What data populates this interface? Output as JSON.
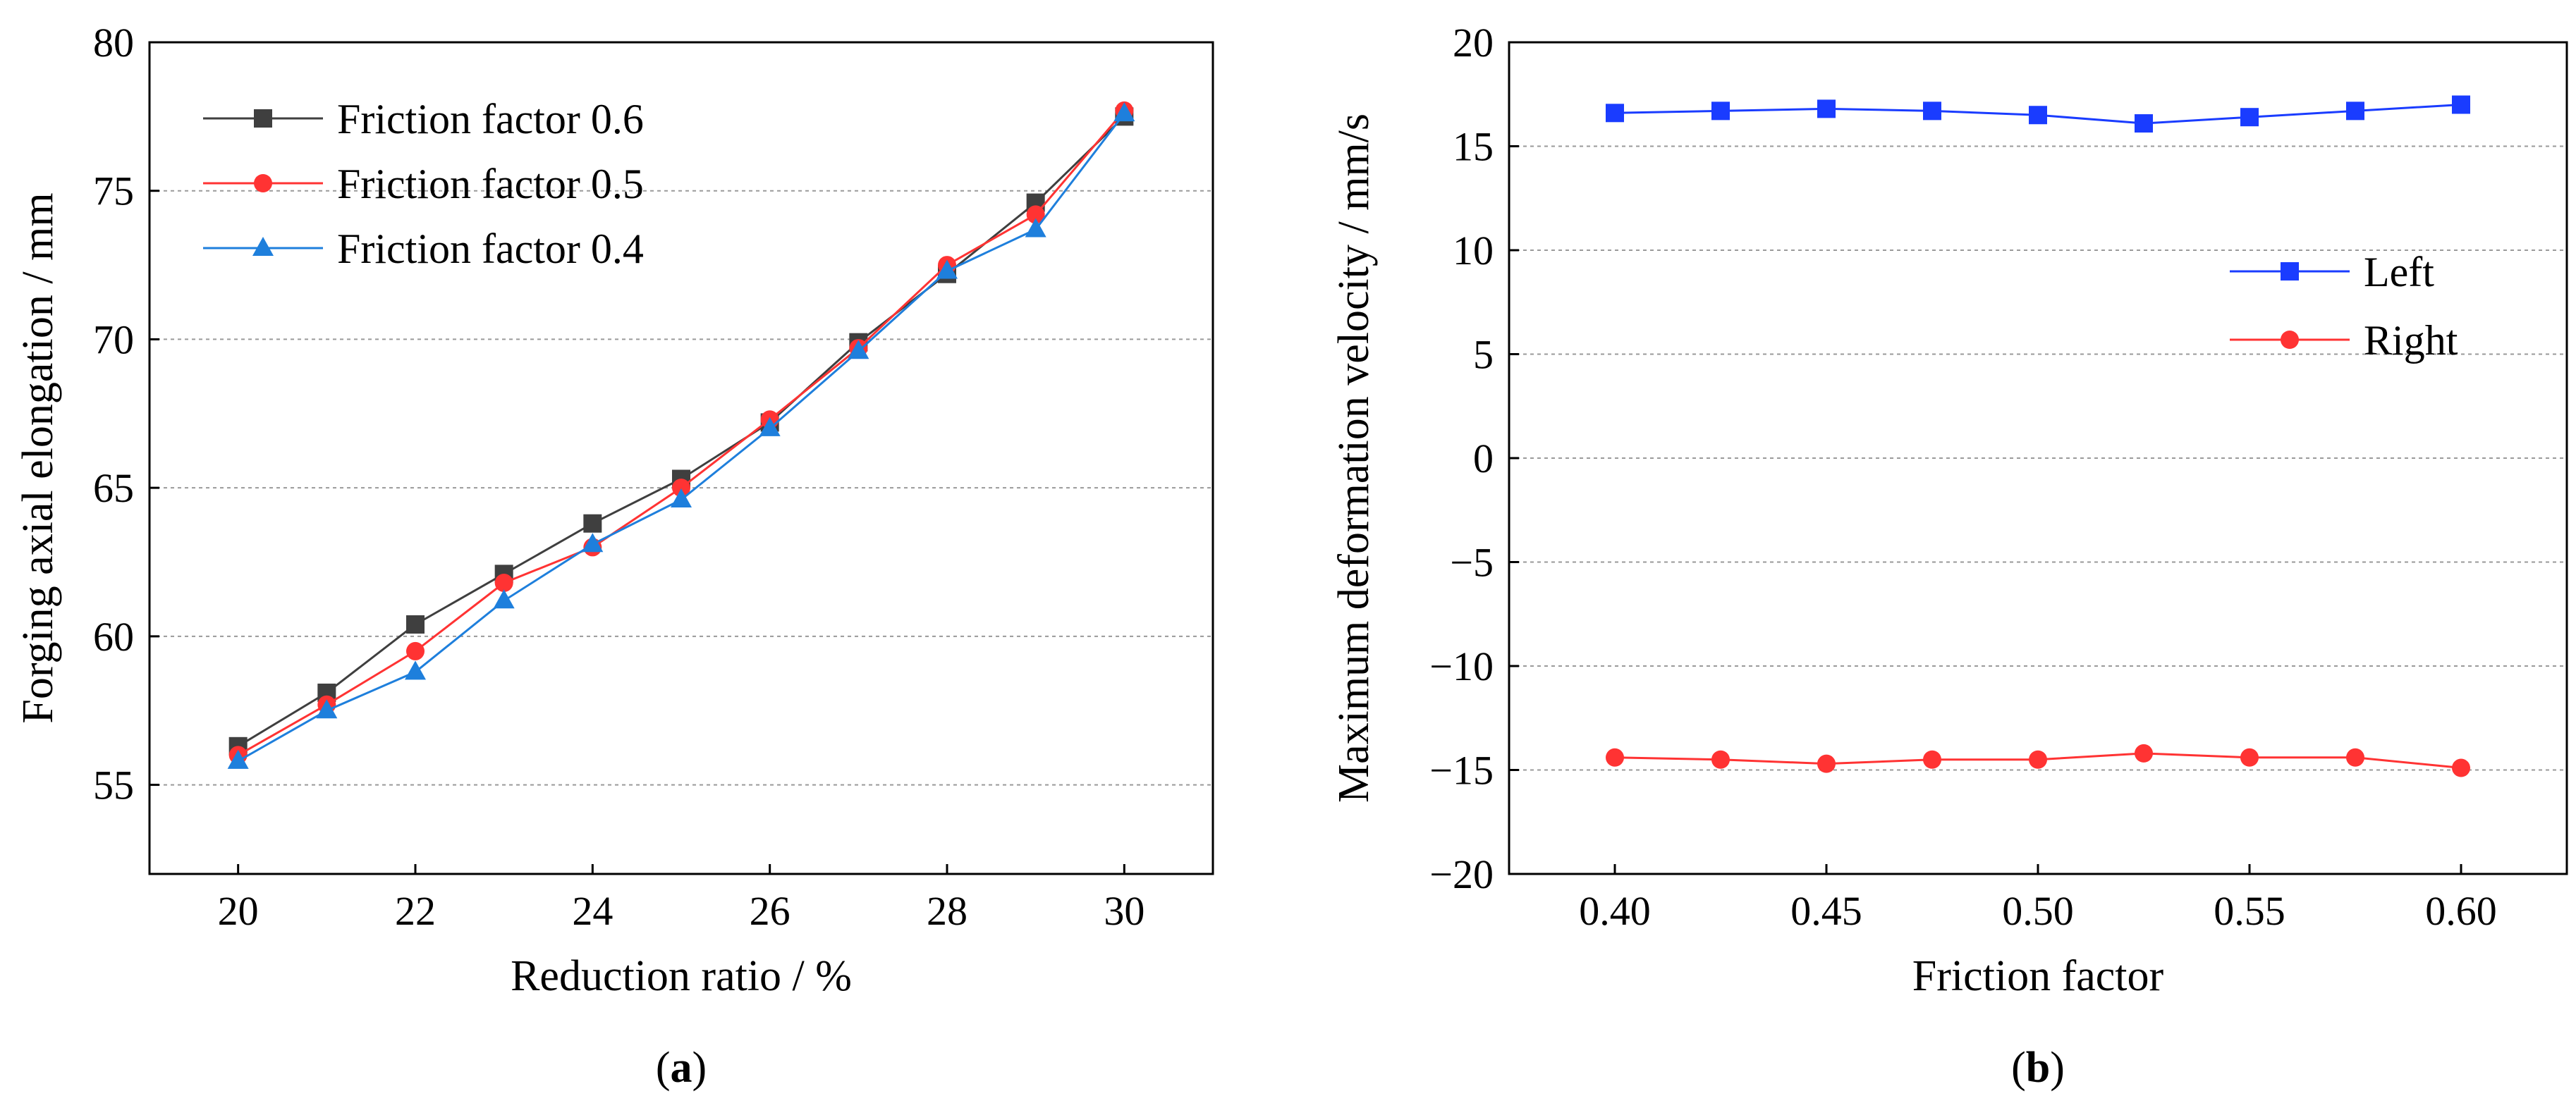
{
  "chart_data": [
    {
      "type": "line",
      "panel_label_open": "(",
      "panel_label_letter": "a",
      "panel_label_close": ")",
      "xlabel": "Reduction ratio / %",
      "ylabel": "Forging axial elongation / mm",
      "xlim": [
        19,
        31
      ],
      "ylim": [
        52,
        80
      ],
      "xticks": [
        20,
        22,
        24,
        26,
        28,
        30
      ],
      "yticks": [
        55,
        60,
        65,
        70,
        75,
        80
      ],
      "grid": "horizontal-dashed",
      "legend_position": "top-left",
      "x": [
        20,
        21,
        22,
        23,
        24,
        25,
        26,
        27,
        28,
        29,
        30
      ],
      "series": [
        {
          "name": "Friction factor 0.6",
          "color": "#3f3f3f",
          "marker": "square",
          "values": [
            56.3,
            58.1,
            60.4,
            62.1,
            63.8,
            65.3,
            67.2,
            69.9,
            72.2,
            74.6,
            77.5
          ]
        },
        {
          "name": "Friction factor 0.5",
          "color": "#ff3333",
          "marker": "circle",
          "values": [
            56.0,
            57.7,
            59.5,
            61.8,
            63.0,
            65.0,
            67.3,
            69.7,
            72.5,
            74.2,
            77.7
          ]
        },
        {
          "name": "Friction factor 0.4",
          "color": "#1e7fdc",
          "marker": "triangle",
          "values": [
            55.8,
            57.5,
            58.8,
            61.2,
            63.1,
            64.6,
            67.0,
            69.6,
            72.3,
            73.7,
            77.6
          ]
        }
      ]
    },
    {
      "type": "line",
      "panel_label_open": "(",
      "panel_label_letter": "b",
      "panel_label_close": ")",
      "xlabel": "Friction factor",
      "ylabel": "Maximum deformation velocity / mm/s",
      "xlim": [
        0.375,
        0.625
      ],
      "ylim": [
        -20,
        20
      ],
      "xticks": [
        "0.40",
        "0.45",
        "0.50",
        "0.55",
        "0.60"
      ],
      "yticks": [
        "−20",
        "−15",
        "−10",
        "−5",
        "0",
        "5",
        "10",
        "15",
        "20"
      ],
      "grid": "horizontal-dashed",
      "legend_position": "center-right",
      "x": [
        0.4,
        0.425,
        0.45,
        0.475,
        0.5,
        0.525,
        0.55,
        0.575,
        0.6
      ],
      "series": [
        {
          "name": "Left",
          "color": "#1a3cff",
          "marker": "square",
          "values": [
            16.6,
            16.7,
            16.8,
            16.7,
            16.5,
            16.1,
            16.4,
            16.7,
            17.0
          ]
        },
        {
          "name": "Right",
          "color": "#ff3333",
          "marker": "circle",
          "values": [
            -14.4,
            -14.5,
            -14.7,
            -14.5,
            -14.5,
            -14.2,
            -14.4,
            -14.4,
            -14.9
          ]
        }
      ]
    }
  ]
}
